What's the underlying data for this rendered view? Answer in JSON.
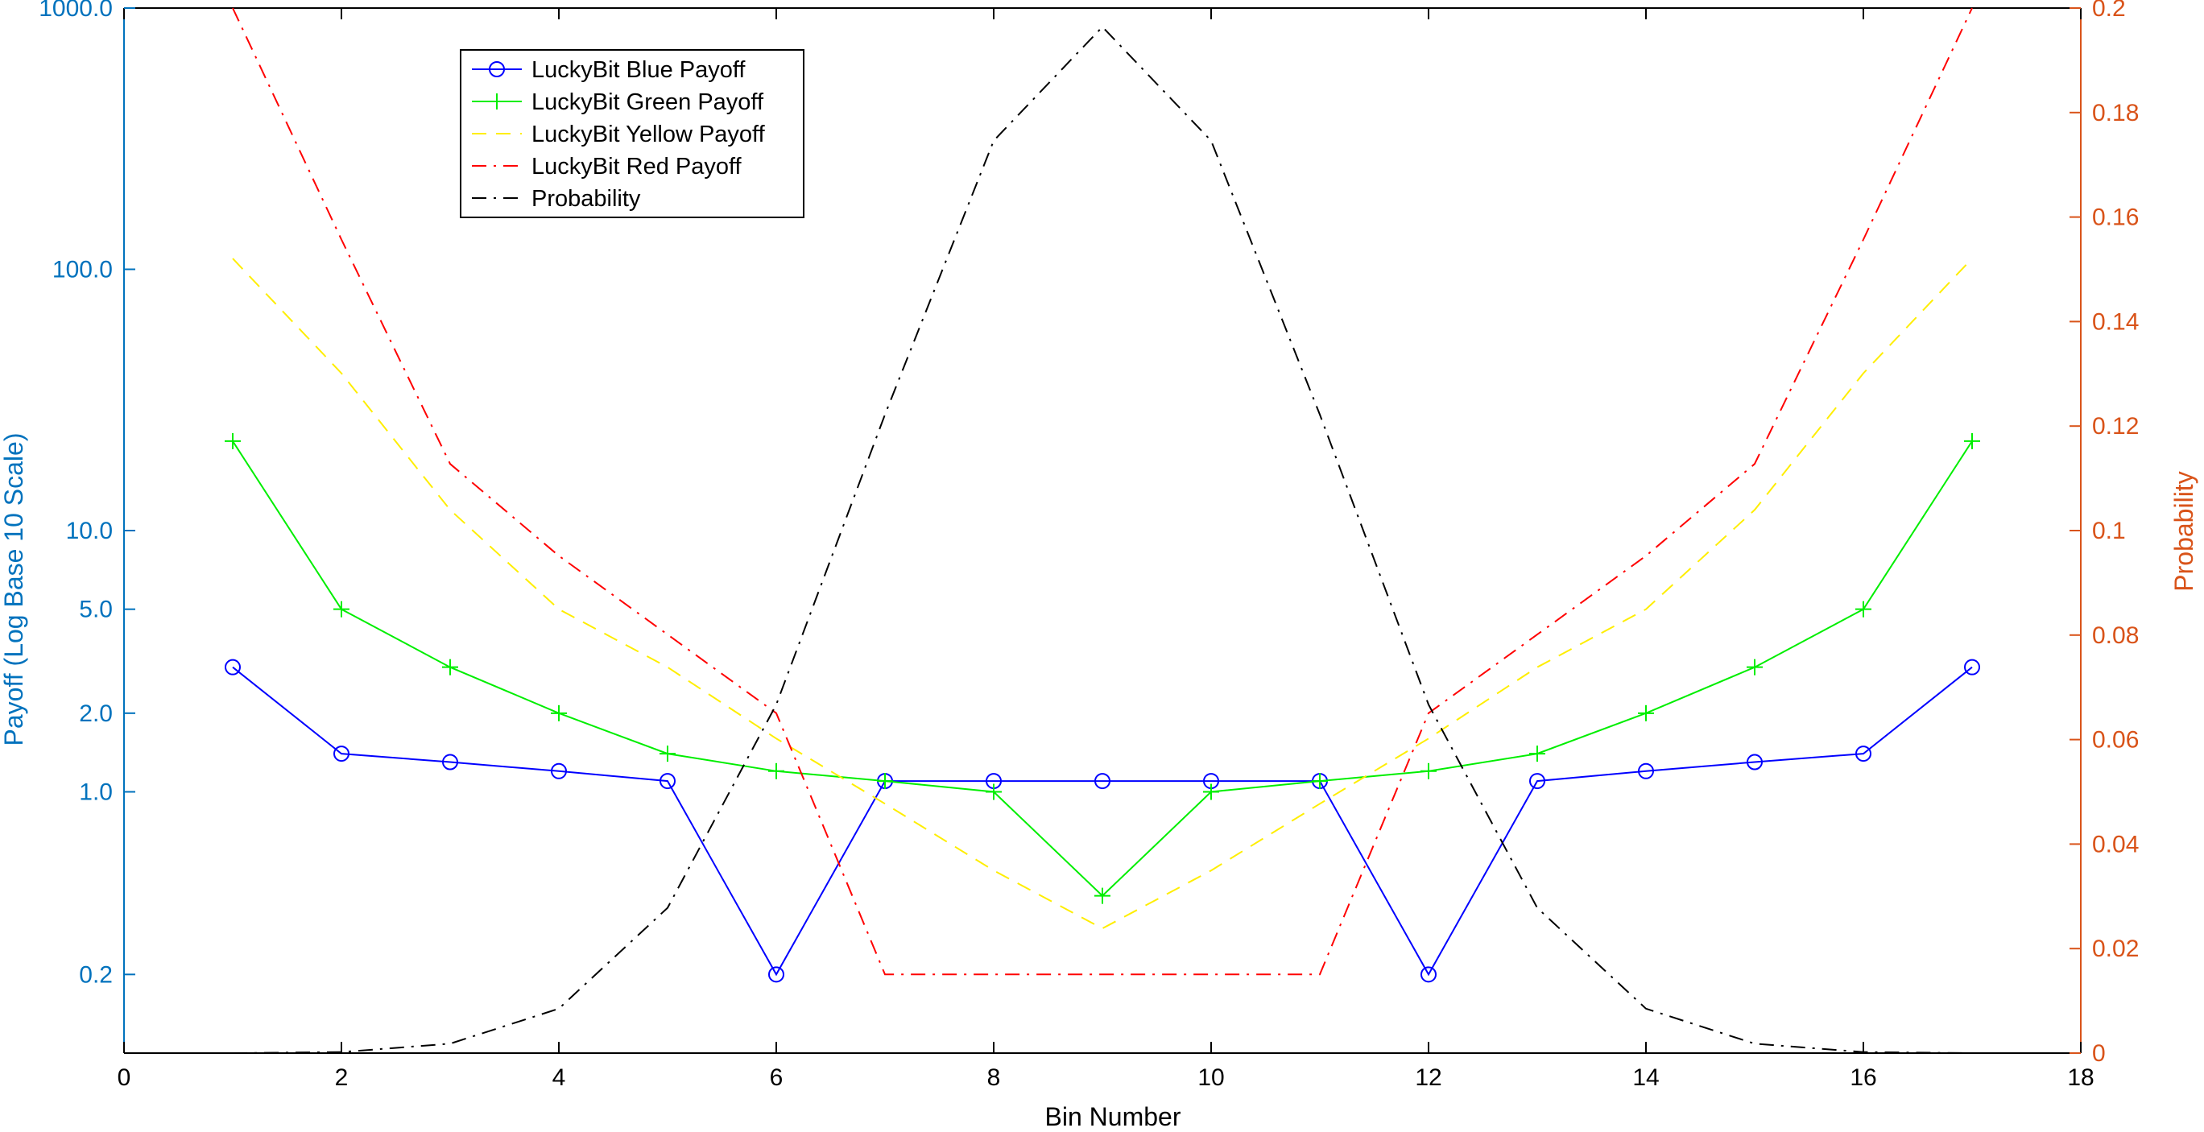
{
  "chart_data": {
    "type": "line",
    "title": "",
    "xlabel": "Bin Number",
    "ylabel_left": "Payoff (Log Base 10 Scale)",
    "ylabel_right": "Probability",
    "xlim": [
      0,
      18
    ],
    "ylim_left": [
      0.1,
      1000
    ],
    "ylim_right": [
      0,
      0.2
    ],
    "x_ticks": [
      0,
      2,
      4,
      6,
      8,
      10,
      12,
      14,
      16,
      18
    ],
    "x_tick_labels": [
      "0",
      "2",
      "4",
      "6",
      "8",
      "10",
      "12",
      "14",
      "16",
      "18"
    ],
    "y_left_ticks": [
      0.2,
      1,
      2,
      5,
      10,
      100,
      1000
    ],
    "y_left_tick_labels": [
      "0.2",
      "1.0",
      "2.0",
      "5.0",
      "10.0",
      "100.0",
      "1000.0"
    ],
    "y_right_ticks": [
      0,
      0.02,
      0.04,
      0.06,
      0.08,
      0.1,
      0.12,
      0.14,
      0.16,
      0.18,
      0.2
    ],
    "y_right_tick_labels": [
      "0",
      "0.02",
      "0.04",
      "0.06",
      "0.08",
      "0.1",
      "0.12",
      "0.14",
      "0.16",
      "0.18",
      "0.2"
    ],
    "grid": false,
    "legend_position": "top-left",
    "x": [
      1,
      2,
      3,
      4,
      5,
      6,
      7,
      8,
      9,
      10,
      11,
      12,
      13,
      14,
      15,
      16,
      17
    ],
    "series": [
      {
        "name": "LuckyBit Blue Payoff",
        "axis": "left",
        "color": "#0000ff",
        "dash": "solid",
        "marker": "circle",
        "values": [
          3,
          1.4,
          1.3,
          1.2,
          1.1,
          0.2,
          1.1,
          1.1,
          1.1,
          1.1,
          1.1,
          0.2,
          1.1,
          1.2,
          1.3,
          1.4,
          3
        ]
      },
      {
        "name": "LuckyBit Green Payoff",
        "axis": "left",
        "color": "#00ee00",
        "dash": "solid",
        "marker": "plus",
        "values": [
          22,
          5,
          3,
          2,
          1.4,
          1.2,
          1.1,
          1,
          0.4,
          1,
          1.1,
          1.2,
          1.4,
          2,
          3,
          5,
          22
        ]
      },
      {
        "name": "LuckyBit Yellow Payoff",
        "axis": "left",
        "color": "#ffee00",
        "dash": "dashed",
        "marker": "none",
        "values": [
          110,
          40,
          12,
          5,
          3,
          1.6,
          0.9,
          0.5,
          0.3,
          0.5,
          0.9,
          1.6,
          3,
          5,
          12,
          40,
          110
        ]
      },
      {
        "name": "LuckyBit Red Payoff",
        "axis": "left",
        "color": "#ff0000",
        "dash": "dashdot",
        "marker": "none",
        "values": [
          1000,
          130,
          18,
          8,
          4,
          2,
          0.2,
          0.2,
          0.2,
          0.2,
          0.2,
          2,
          4,
          8,
          18,
          130,
          1000
        ]
      },
      {
        "name": "Probability",
        "axis": "right",
        "color": "#000000",
        "dash": "dashdot",
        "marker": "none",
        "values": [
          0,
          0.0002,
          0.0018,
          0.0085,
          0.0278,
          0.0667,
          0.1222,
          0.1746,
          0.1964,
          0.1746,
          0.1222,
          0.0667,
          0.0278,
          0.0085,
          0.0018,
          0.0002,
          0
        ]
      }
    ],
    "colors": {
      "left_axis": "#0072bd",
      "right_axis": "#d95319",
      "frame": "#000000"
    }
  }
}
